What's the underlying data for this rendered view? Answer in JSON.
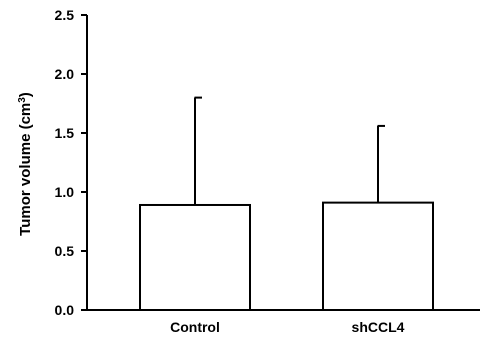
{
  "chart_data": {
    "type": "bar",
    "categories": [
      "Control",
      "shCCL4"
    ],
    "values": [
      0.89,
      0.91
    ],
    "error_upper": [
      1.8,
      1.56
    ],
    "ylim": [
      0,
      2.5
    ],
    "yticks": [
      "0.0",
      "0.5",
      "1.0",
      "1.5",
      "2.0",
      "2.5"
    ],
    "ylabel_text": "Tumor volume (cm",
    "ylabel_superscript": "3",
    "ylabel_close": ")",
    "xlabel": "",
    "title": "",
    "grid": false,
    "legend": "none",
    "bar_fill": "#ffffff",
    "bar_stroke": "#000000"
  }
}
